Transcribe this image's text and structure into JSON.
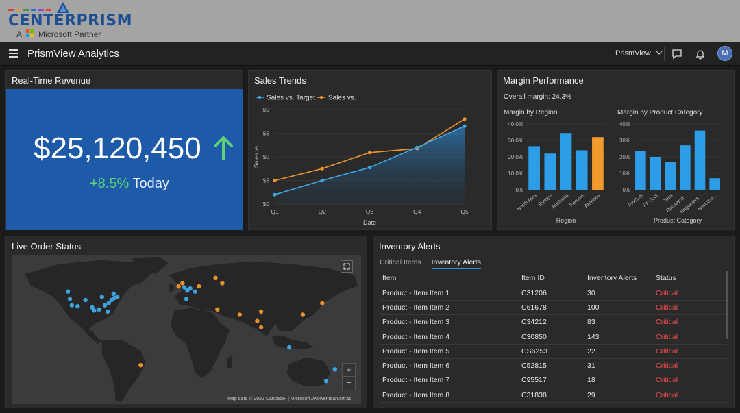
{
  "brand": {
    "name": "CENTERPRISM",
    "partner_prefix": "A",
    "partner_text": "Microsoft Partner"
  },
  "topbar": {
    "title": "PrismView Analytics",
    "workspace": "PrismView",
    "avatar_initial": "M",
    "icons": [
      "menu-icon",
      "chevron-down-icon",
      "chat-icon",
      "bell-icon"
    ]
  },
  "revenue": {
    "title": "Real-Time Revenue",
    "value": "$25,120,450",
    "change": "+8.5%",
    "change_suffix": "Today",
    "accent": "#1d5ba8",
    "up_color": "#5fd17a"
  },
  "sales_trends": {
    "title": "Sales Trends"
  },
  "margin": {
    "title": "Margin Performance",
    "overall": "Overall margin: 24.3%"
  },
  "map": {
    "title": "Live Order Status",
    "credit": "Map data © 2022 Cancade- | Microsoft //Kowentoan.Mtrap",
    "zoom_in": "+",
    "zoom_out": "−"
  },
  "inventory": {
    "title": "Inventory Alerts",
    "tabs": [
      "Critical Items",
      "Inventory Alerts"
    ],
    "active_tab": 1,
    "columns": [
      "Item",
      "Item ID",
      "Inventory Alerts",
      "Status"
    ],
    "rows": [
      [
        "Product - Item Item 1",
        "C31206",
        "30",
        "Critical"
      ],
      [
        "Product - Item Item 2",
        "C61678",
        "100",
        "Critical"
      ],
      [
        "Product - Item Item 3",
        "C34212",
        "83",
        "Critical"
      ],
      [
        "Product - Item Item 4",
        "C30850",
        "143",
        "Critical"
      ],
      [
        "Product - Item Item 5",
        "CS6253",
        "22",
        "Critical"
      ],
      [
        "Product - Item Item 6",
        "C52815",
        "31",
        "Critical"
      ],
      [
        "Product - Item Item 7",
        "C95517",
        "18",
        "Critical"
      ],
      [
        "Product - Item Item 8",
        "C31838",
        "29",
        "Critical"
      ]
    ],
    "critical_color": "#e74c4c"
  },
  "chart_data": [
    {
      "type": "line",
      "x": [
        "Q1",
        "Q2",
        "Q3",
        "Q4",
        "Q5"
      ],
      "xlabel": "Date",
      "ylabel": "Sales vs",
      "yticks": [
        "$0",
        "$5",
        "$0",
        "$5",
        "$0"
      ],
      "ylim": [
        0,
        4
      ],
      "series": [
        {
          "name": "Sales vs. Target",
          "color": "#3fa9e6",
          "values": [
            0.4,
            1.0,
            1.55,
            2.4,
            3.3
          ]
        },
        {
          "name": "Sales vs.",
          "color": "#f0962e",
          "values": [
            1.0,
            1.5,
            2.18,
            2.35,
            3.6
          ]
        }
      ],
      "area_under": "Sales vs. Target",
      "grid": true,
      "legend": "top-left"
    },
    {
      "type": "bar",
      "title": "Margin by Region",
      "categories": [
        "North Asia",
        "Europe",
        "Australia",
        "Forbole",
        "America"
      ],
      "values": [
        26.5,
        22,
        34.5,
        24,
        32
      ],
      "colors": [
        "#2d9de8",
        "#2d9de8",
        "#2d9de8",
        "#2d9de8",
        "#f39a2c"
      ],
      "yticks": [
        "0%",
        "10.0%",
        "20.0%",
        "30.0%",
        "40.0%"
      ],
      "ylim": [
        0,
        40
      ],
      "xlabel": "Region",
      "grid": true
    },
    {
      "type": "bar",
      "title": "Margin by Product Category",
      "categories": [
        "Product",
        "Product",
        "Toss",
        "Roosaruli...",
        "Bagueiers...",
        "Nenston..."
      ],
      "values": [
        23.5,
        20,
        17,
        27,
        36,
        7
      ],
      "color": "#2d9de8",
      "yticks": [
        "0%",
        "10%",
        "20%",
        "30%",
        "40%"
      ],
      "ylim": [
        0,
        40
      ],
      "xlabel": "Product Category",
      "grid": true
    }
  ],
  "map_markers": {
    "blue": [
      [
        -122,
        47
      ],
      [
        -120,
        40
      ],
      [
        -118,
        34
      ],
      [
        -112,
        33
      ],
      [
        -104,
        39
      ],
      [
        -97,
        32
      ],
      [
        -95,
        29
      ],
      [
        -90,
        30
      ],
      [
        -87,
        42
      ],
      [
        -84,
        34
      ],
      [
        -81,
        28
      ],
      [
        -80,
        36
      ],
      [
        -77,
        39
      ],
      [
        -74,
        41
      ],
      [
        -71,
        42
      ],
      [
        -75,
        45
      ],
      [
        -2,
        51
      ],
      [
        1,
        48
      ],
      [
        4,
        50
      ],
      [
        9,
        47
      ],
      [
        0,
        40
      ],
      [
        153,
        -27
      ],
      [
        144,
        -38
      ],
      [
        106,
        -6
      ]
    ],
    "orange": [
      [
        -4,
        55
      ],
      [
        -8,
        52
      ],
      [
        13,
        52
      ],
      [
        30,
        60
      ],
      [
        37,
        55
      ],
      [
        32,
        30
      ],
      [
        55,
        25
      ],
      [
        73,
        19
      ],
      [
        77,
        28
      ],
      [
        77,
        13
      ],
      [
        120,
        25
      ],
      [
        140,
        36
      ],
      [
        -47,
        -23
      ]
    ]
  }
}
